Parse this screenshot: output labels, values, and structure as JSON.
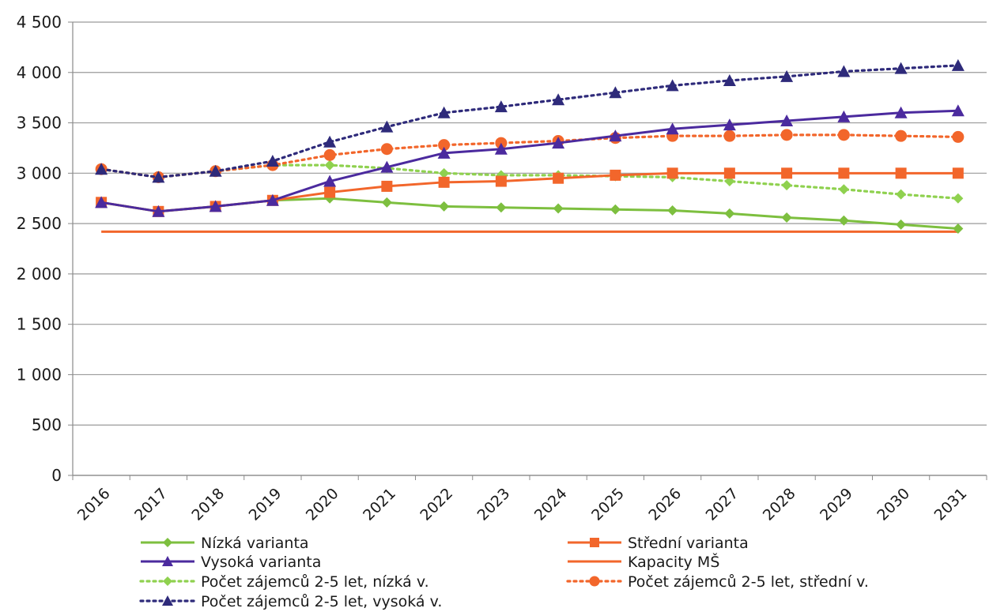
{
  "chart_data": {
    "type": "line",
    "categories": [
      "2016",
      "2017",
      "2018",
      "2019",
      "2020",
      "2021",
      "2022",
      "2023",
      "2024",
      "2025",
      "2026",
      "2027",
      "2028",
      "2029",
      "2030",
      "2031"
    ],
    "ylim": [
      0,
      4500
    ],
    "y_ticks": [
      0,
      500,
      1000,
      1500,
      2000,
      2500,
      3000,
      3500,
      4000,
      4500
    ],
    "y_tick_labels": [
      "0",
      "500",
      "1 000",
      "1 500",
      "2 000",
      "2 500",
      "3 000",
      "3 500",
      "4 000",
      "4 500"
    ],
    "grid": "horizontal",
    "legend_position": "bottom",
    "series": [
      {
        "name": "Nízká varianta",
        "color": "#7dbf3f",
        "line": "solid",
        "marker": "diamond",
        "values": [
          2710,
          2620,
          2670,
          2730,
          2750,
          2710,
          2670,
          2660,
          2650,
          2640,
          2630,
          2600,
          2560,
          2530,
          2490,
          2450
        ]
      },
      {
        "name": "Střední varianta",
        "color": "#f2662b",
        "line": "solid",
        "marker": "square",
        "values": [
          2710,
          2620,
          2670,
          2730,
          2810,
          2870,
          2910,
          2920,
          2950,
          2980,
          3000,
          3000,
          3000,
          3000,
          3000,
          3000
        ]
      },
      {
        "name": "Vysoká varianta",
        "color": "#4b2a9e",
        "line": "solid",
        "marker": "triangle",
        "values": [
          2710,
          2620,
          2670,
          2730,
          2920,
          3060,
          3200,
          3240,
          3300,
          3370,
          3440,
          3480,
          3520,
          3560,
          3600,
          3620
        ]
      },
      {
        "name": "Kapacity MŠ",
        "color": "#f2662b",
        "line": "solid",
        "marker": "none",
        "values": [
          2420,
          2420,
          2420,
          2420,
          2420,
          2420,
          2420,
          2420,
          2420,
          2420,
          2420,
          2420,
          2420,
          2420,
          2420,
          2420
        ]
      },
      {
        "name": "Počet zájemců 2-5 let, nízká v.",
        "color": "#8fd14f",
        "line": "dotted",
        "marker": "diamond",
        "values": [
          3040,
          2960,
          3020,
          3080,
          3080,
          3050,
          3000,
          2980,
          2980,
          2970,
          2960,
          2920,
          2880,
          2840,
          2790,
          2750
        ]
      },
      {
        "name": "Počet zájemců 2-5 let, střední v.",
        "color": "#f2662b",
        "line": "dotted",
        "marker": "circle",
        "values": [
          3040,
          2960,
          3020,
          3080,
          3180,
          3240,
          3280,
          3300,
          3320,
          3350,
          3370,
          3370,
          3380,
          3380,
          3370,
          3360
        ]
      },
      {
        "name": "Počet zájemců 2-5 let, vysoká v.",
        "color": "#2e2a7a",
        "line": "dotted",
        "marker": "triangle",
        "values": [
          3040,
          2960,
          3020,
          3120,
          3310,
          3460,
          3600,
          3660,
          3730,
          3800,
          3870,
          3920,
          3960,
          4010,
          4040,
          4070
        ]
      }
    ]
  }
}
